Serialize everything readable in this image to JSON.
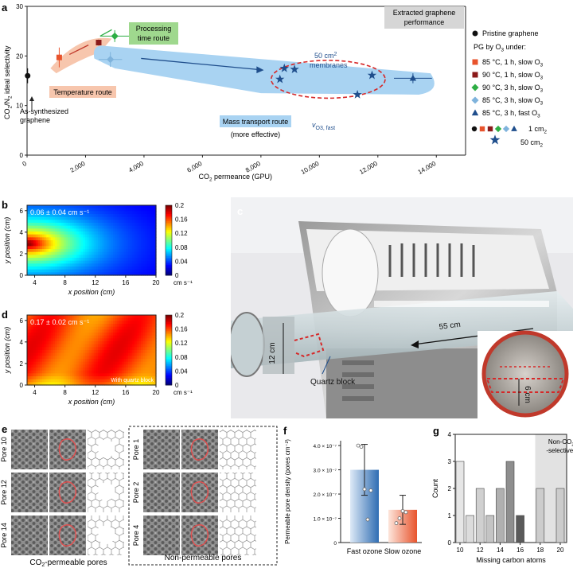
{
  "panel_a": {
    "letter": "a",
    "ylabel_parts": [
      "CO",
      "2",
      "/N",
      "2",
      " ideal selectivity"
    ],
    "xlabel_parts": [
      "CO",
      "2",
      " permeance (GPU)"
    ],
    "annotations": {
      "extracted": [
        "Extracted graphene",
        "performance"
      ],
      "processing": [
        "Processing",
        "time route"
      ],
      "temperature": "Temperature route",
      "mass": "Mass transport route",
      "mass_sub": "(more effective)",
      "membranes_50": [
        "50 cm",
        "2"
      ],
      "membranes_word": "membranes",
      "as_synth": [
        "As-synthesized",
        "graphene"
      ],
      "vo3": [
        "v",
        "O",
        "3",
        ", fast"
      ]
    },
    "legend": {
      "pristine": "Pristine graphene",
      "pg_header": [
        "PG by O",
        "3",
        " under:"
      ],
      "items": [
        {
          "label": [
            "85 °C, 1 h, slow O",
            "3"
          ],
          "color": "#e8532c",
          "shape": "square"
        },
        {
          "label": [
            "90 °C, 1 h, slow O",
            "3"
          ],
          "color": "#8b1a1a",
          "shape": "square"
        },
        {
          "label": [
            "90 °C, 3 h, slow O",
            "3"
          ],
          "color": "#2eae44",
          "shape": "diamond"
        },
        {
          "label": [
            "85 °C, 3 h, slow O",
            "3"
          ],
          "color": "#7fb3dc",
          "shape": "diamond"
        },
        {
          "label": [
            "85 °C, 3 h, fast O",
            "3"
          ],
          "color": "#1f4e8c",
          "shape": "triangle"
        }
      ],
      "size1": [
        "1 cm",
        "2"
      ],
      "size50": [
        "50 cm",
        "2"
      ]
    }
  },
  "chart_data": [
    {
      "type": "scatter",
      "panel": "a",
      "xlim": [
        0,
        15000
      ],
      "ylim": [
        0,
        30
      ],
      "xticks": [
        0,
        2000,
        4000,
        6000,
        8000,
        10000,
        12000,
        14000
      ],
      "xtick_labels": [
        "0",
        "2,000",
        "4,000",
        "6,000",
        "8,000",
        "10,000",
        "12,000",
        "14,000"
      ],
      "yticks": [
        0,
        10,
        20,
        30
      ],
      "ytick_labels": [
        "0",
        "10",
        "20",
        "30"
      ],
      "series": [
        {
          "name": "Pristine graphene",
          "color": "#111111",
          "shape": "circle",
          "points": [
            {
              "x": 20,
              "y": 16,
              "xerr": 0,
              "yerr": 1.5
            }
          ]
        },
        {
          "name": "85 °C, 1 h, slow O3",
          "color": "#e8532c",
          "shape": "square",
          "points": [
            {
              "x": 1100,
              "y": 19.7,
              "xerr": 0,
              "yerr": 2
            }
          ]
        },
        {
          "name": "90 °C, 1 h, slow O3",
          "color": "#8b1a1a",
          "shape": "square",
          "points": [
            {
              "x": 2450,
              "y": 22.7,
              "xerr": 80,
              "yerr": 0.6
            }
          ]
        },
        {
          "name": "90 °C, 3 h, slow O3",
          "color": "#2eae44",
          "shape": "diamond",
          "points": [
            {
              "x": 3000,
              "y": 24,
              "xerr": 500,
              "yerr": 1.2
            }
          ]
        },
        {
          "name": "85 °C, 3 h, slow O3",
          "color": "#7fb3dc",
          "shape": "diamond",
          "points": [
            {
              "x": 2850,
              "y": 19.3,
              "xerr": 400,
              "yerr": 1.5
            }
          ]
        },
        {
          "name": "85 °C, 3 h, fast O3",
          "color": "#1f4e8c",
          "shape": "triangle",
          "points": [
            {
              "x": 13200,
              "y": 15.5,
              "xerr": 650,
              "yerr": 1
            }
          ]
        },
        {
          "name": "50 cm2",
          "color": "#1f4e8c",
          "shape": "star",
          "points": [
            {
              "x": 8650,
              "y": 15.3
            },
            {
              "x": 8800,
              "y": 17.5
            },
            {
              "x": 9150,
              "y": 17.3
            },
            {
              "x": 11300,
              "y": 12.2
            },
            {
              "x": 11800,
              "y": 16.1
            }
          ]
        }
      ]
    },
    {
      "type": "heatmap",
      "panel": "b",
      "title": "0.06 ± 0.04 cm s⁻¹",
      "xlabel": "x position (cm)",
      "ylabel": "y position (cm)",
      "xticks": [
        4,
        8,
        12,
        16,
        20
      ],
      "yticks": [
        0,
        2,
        4,
        6
      ],
      "colorbar_ticks": [
        0,
        0.04,
        0.08,
        0.12,
        0.16,
        0.2
      ],
      "colorbar_labels": [
        "0",
        "0.04",
        "0.08",
        "0.12",
        "0.16",
        "0.2"
      ],
      "colorbar_unit": "cm s⁻¹"
    },
    {
      "type": "heatmap",
      "panel": "d",
      "title": "0.17 ± 0.02 cm s⁻¹",
      "xlabel": "x position (cm)",
      "ylabel": "y position (cm)",
      "xticks": [
        4,
        8,
        12,
        16,
        20
      ],
      "yticks": [
        0,
        2,
        4,
        6
      ],
      "colorbar_ticks": [
        0,
        0.04,
        0.08,
        0.12,
        0.16,
        0.2
      ],
      "colorbar_labels": [
        "0",
        "0.04",
        "0.08",
        "0.12",
        "0.16",
        "0.2"
      ],
      "colorbar_unit": "cm s⁻¹",
      "note": "With quartz block"
    },
    {
      "type": "bar",
      "panel": "f",
      "categories": [
        "Fast ozone",
        "Slow ozone"
      ],
      "values": [
        3.0,
        1.35
      ],
      "errors": [
        1.05,
        0.6
      ],
      "ylim": [
        0,
        4.2
      ],
      "yticks": [
        0,
        1,
        2,
        3,
        4
      ],
      "ytick_labels": [
        "0",
        "1.0 × 10⁻⁷",
        "2.0 × 10⁻⁷",
        "3.0 × 10⁻⁷",
        "4.0 × 10⁻⁷"
      ],
      "ylabel": "Permeable pore density (pores cm⁻²)",
      "points": [
        [
          4.0,
          3.95,
          2.2,
          0.95,
          2.15
        ],
        [
          0.8,
          1.0,
          1.3,
          1.25
        ]
      ]
    },
    {
      "type": "bar",
      "panel": "g",
      "categories": [
        10,
        11,
        12,
        13,
        14,
        15,
        16,
        17,
        18,
        20
      ],
      "values": [
        3,
        1,
        2,
        1,
        2,
        3,
        1,
        0,
        2,
        2
      ],
      "ylim": [
        0,
        4
      ],
      "yticks": [
        0,
        1,
        2,
        3,
        4
      ],
      "xtick_labels": [
        "10",
        "12",
        "14",
        "16",
        "18",
        "20"
      ],
      "xlabel": "Missing carbon atoms",
      "ylabel": "Count",
      "shade_label": [
        "Non-CO",
        "2",
        "-selective"
      ]
    }
  ],
  "panel_c": {
    "letter": "c",
    "len_label": "55 cm",
    "dia_label": "12 cm",
    "block_label": "Quartz block",
    "inset_label": "6 cm"
  },
  "panel_e": {
    "letter": "e",
    "left_rows": [
      "Pore 10",
      "Pore 12",
      "Pore 14"
    ],
    "right_rows": [
      "Pore 1",
      "Pore 2",
      "Pore 4"
    ],
    "left_caption": [
      "CO",
      "2",
      "-permeable pores"
    ],
    "right_caption": "Non-permeable pores"
  },
  "letters": {
    "b": "b",
    "d": "d",
    "f": "f",
    "g": "g"
  },
  "colors": {
    "blue": "#1f4e8c",
    "orange": "#e8532c",
    "red_dash": "#d62828",
    "band_blue": "#a9d3f2",
    "band_orange": "#f7c6ad"
  }
}
